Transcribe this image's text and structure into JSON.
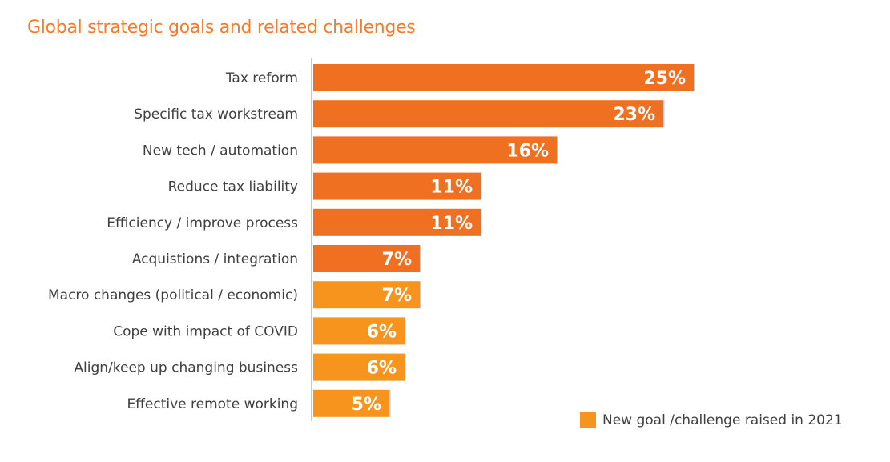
{
  "chart_data": {
    "type": "bar",
    "orientation": "horizontal",
    "title": "Global strategic goals and related challenges",
    "xlabel": "",
    "ylabel": "",
    "xlim": [
      0,
      25
    ],
    "grid": false,
    "categories": [
      "Tax reform",
      "Specific tax workstream",
      "New tech / automation",
      "Reduce tax liability",
      "Efficiency / improve process",
      "Acquistions / integration",
      "Macro changes (political / economic)",
      "Cope with impact of COVID",
      "Align/keep up changing business",
      "Effective remote working"
    ],
    "values": [
      25,
      23,
      16,
      11,
      11,
      7,
      7,
      6,
      6,
      5
    ],
    "value_labels": [
      "25%",
      "23%",
      "16%",
      "11%",
      "11%",
      "7%",
      "7%",
      "6%",
      "6%",
      "5%"
    ],
    "new_in_2021": [
      false,
      false,
      false,
      false,
      false,
      false,
      true,
      true,
      true,
      true
    ],
    "colors": {
      "existing": "#F07022",
      "new": "#F7941D"
    },
    "legend": {
      "label": "New goal /challenge raised in 2021",
      "placement": "bottom-right"
    }
  }
}
